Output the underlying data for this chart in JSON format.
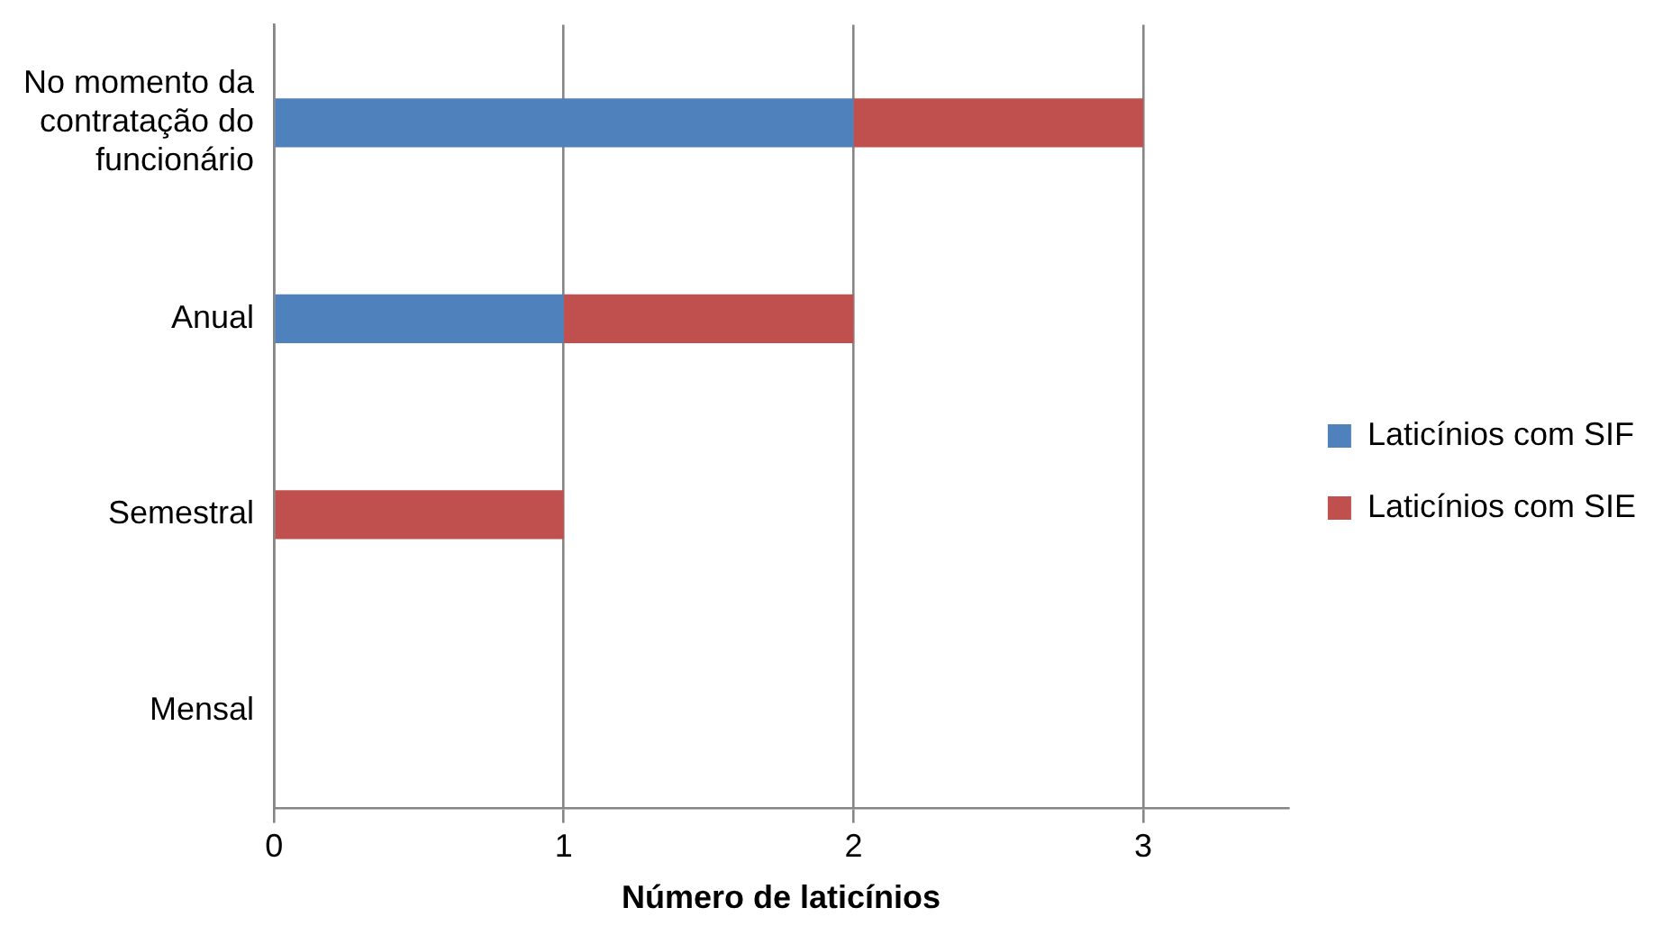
{
  "chart_data": {
    "type": "bar",
    "orientation": "horizontal",
    "stacked": true,
    "xlabel": "Número de laticínios",
    "categories": [
      "No momento da contratação do funcionário",
      "Anual",
      "Semestral",
      "Mensal"
    ],
    "series": [
      {
        "name": "Laticínios com SIF",
        "color": "#4f81bd",
        "values": [
          2,
          1,
          0,
          0
        ]
      },
      {
        "name": "Laticínios com SIE",
        "color": "#c0504d",
        "values": [
          1,
          1,
          1,
          0
        ]
      }
    ],
    "xlim": [
      0,
      3.5
    ],
    "xticks": [
      0,
      1,
      2,
      3
    ],
    "grid": "x",
    "legend": "right"
  }
}
